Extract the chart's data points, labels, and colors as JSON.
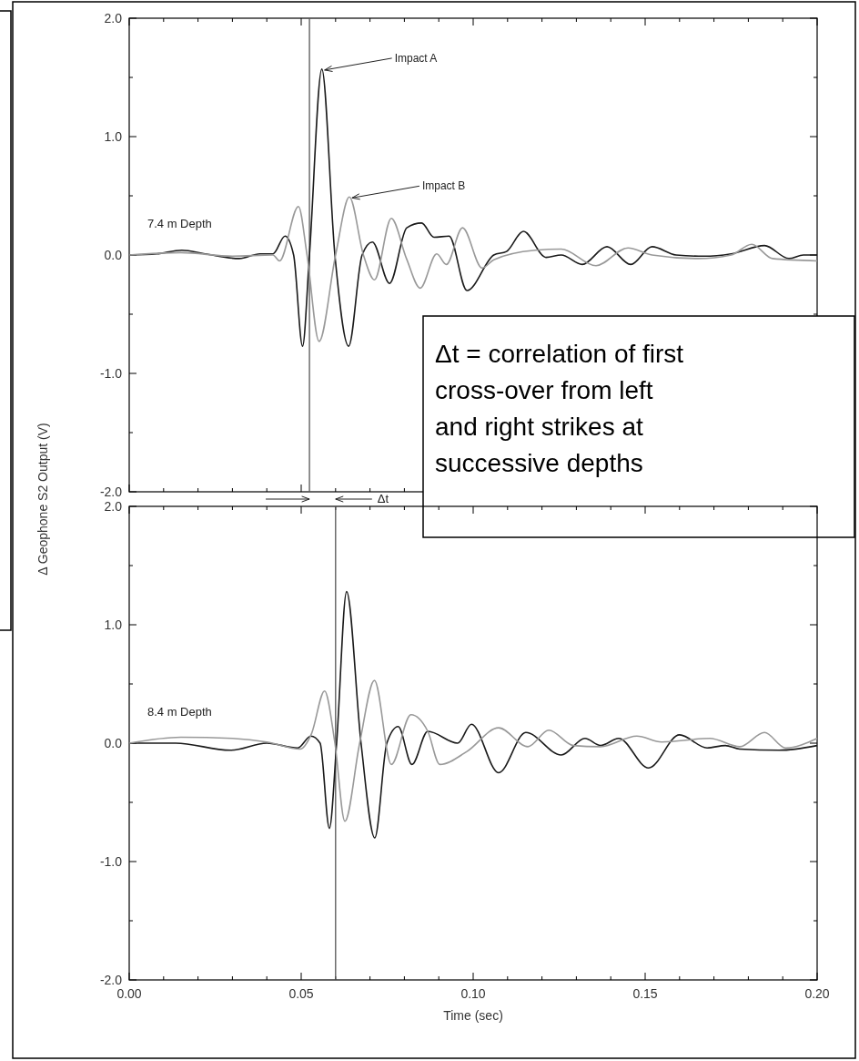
{
  "chart_data": [
    {
      "type": "line",
      "ylabel": "Δ Geophone S2 Output (V)",
      "xlim": [
        0,
        0.2
      ],
      "ylim": [
        -2,
        2
      ],
      "tick_labels": "y",
      "xticks": [
        {
          "value": 0,
          "label": null
        },
        {
          "value": 0.01,
          "label": null
        },
        {
          "value": 0.02,
          "label": null
        },
        {
          "value": 0.03,
          "label": null
        },
        {
          "value": 0.04,
          "label": null
        },
        {
          "value": 0.05,
          "label": null
        },
        {
          "value": 0.06,
          "label": null
        },
        {
          "value": 0.07,
          "label": null
        },
        {
          "value": 0.08,
          "label": null
        },
        {
          "value": 0.09,
          "label": null
        },
        {
          "value": 0.1,
          "label": null
        },
        {
          "value": 0.11,
          "label": null
        },
        {
          "value": 0.12,
          "label": null
        },
        {
          "value": 0.13,
          "label": null
        },
        {
          "value": 0.14,
          "label": null
        },
        {
          "value": 0.15,
          "label": null
        },
        {
          "value": 0.16,
          "label": null
        },
        {
          "value": 0.17,
          "label": null
        },
        {
          "value": 0.18,
          "label": null
        },
        {
          "value": 0.19,
          "label": null
        },
        {
          "value": 0.2,
          "label": null
        }
      ],
      "yticks": [
        {
          "value": -2,
          "label": "-2.0"
        },
        {
          "value": -1.5,
          "label": null
        },
        {
          "value": -1,
          "label": "-1.0"
        },
        {
          "value": -0.5,
          "label": null
        },
        {
          "value": 0,
          "label": "0.0"
        },
        {
          "value": 0.5,
          "label": null
        },
        {
          "value": 1,
          "label": "1.0"
        },
        {
          "value": 1.5,
          "label": null
        },
        {
          "value": 2,
          "label": "2.0"
        }
      ],
      "series": [
        {
          "name": "Impact A",
          "color": "#1a1a1a",
          "x": [
            0,
            0.008,
            0.0153,
            0.022,
            0.032,
            0.038,
            0.0418,
            0.0453,
            0.0478,
            0.0504,
            0.0524,
            0.056,
            0.0598,
            0.0638,
            0.0677,
            0.0707,
            0.0757,
            0.0807,
            0.085,
            0.0886,
            0.093,
            0.0982,
            0.106,
            0.1097,
            0.1146,
            0.1212,
            0.1256,
            0.1317,
            0.1389,
            0.1458,
            0.152,
            0.159,
            0.167,
            0.175,
            0.1847,
            0.1918,
            0.196,
            0.2
          ],
          "values": [
            0,
            0.01,
            0.04,
            0.01,
            -0.03,
            0.01,
            0.01,
            0.16,
            0,
            -0.77,
            0,
            1.57,
            0,
            -0.77,
            0,
            0.11,
            -0.24,
            0.23,
            0.27,
            0.15,
            0.16,
            -0.3,
            0,
            0.03,
            0.2,
            -0.02,
            0,
            -0.08,
            0.07,
            -0.08,
            0.07,
            0,
            -0.01,
            0.01,
            0.08,
            -0.03,
            0,
            0
          ]
        },
        {
          "name": "Impact B",
          "color": "#999999",
          "x": [
            0,
            0.015,
            0.03,
            0.0418,
            0.0437,
            0.0492,
            0.0517,
            0.0552,
            0.06,
            0.064,
            0.0681,
            0.0713,
            0.0762,
            0.0806,
            0.0846,
            0.0894,
            0.0922,
            0.0969,
            0.1026,
            0.106,
            0.118,
            0.1256,
            0.1357,
            0.145,
            0.152,
            0.1653,
            0.175,
            0.181,
            0.187,
            0.2
          ],
          "values": [
            0,
            0.02,
            -0.01,
            0,
            -0.05,
            0.41,
            0,
            -0.73,
            0,
            0.49,
            0,
            -0.21,
            0.31,
            -0.03,
            -0.28,
            0.01,
            -0.08,
            0.23,
            -0.11,
            -0.04,
            0.04,
            0.05,
            -0.09,
            0.06,
            0,
            -0.03,
            0,
            0.09,
            -0.03,
            -0.05
          ]
        }
      ],
      "ref_lines": [
        {
          "axis": "x",
          "value": 0.0524,
          "color": "#555555"
        }
      ],
      "annotations": [
        "7.4 m Depth",
        "Δt = correlation of first cross-over from left and right strikes at successive depths"
      ]
    },
    {
      "type": "line",
      "xlabel": "Time (sec)",
      "xlim": [
        0,
        0.2
      ],
      "ylim": [
        -2,
        2
      ],
      "xticks": [
        {
          "value": 0,
          "label": "0.00"
        },
        {
          "value": 0.01,
          "label": null
        },
        {
          "value": 0.02,
          "label": null
        },
        {
          "value": 0.03,
          "label": null
        },
        {
          "value": 0.04,
          "label": null
        },
        {
          "value": 0.05,
          "label": "0.05"
        },
        {
          "value": 0.06,
          "label": null
        },
        {
          "value": 0.07,
          "label": null
        },
        {
          "value": 0.08,
          "label": null
        },
        {
          "value": 0.09,
          "label": null
        },
        {
          "value": 0.1,
          "label": "0.10"
        },
        {
          "value": 0.11,
          "label": null
        },
        {
          "value": 0.12,
          "label": null
        },
        {
          "value": 0.13,
          "label": null
        },
        {
          "value": 0.14,
          "label": null
        },
        {
          "value": 0.15,
          "label": "0.15"
        },
        {
          "value": 0.16,
          "label": null
        },
        {
          "value": 0.17,
          "label": null
        },
        {
          "value": 0.18,
          "label": null
        },
        {
          "value": 0.19,
          "label": null
        },
        {
          "value": 0.2,
          "label": "0.20"
        }
      ],
      "yticks": [
        {
          "value": -2,
          "label": "-2.0"
        },
        {
          "value": -1.5,
          "label": null
        },
        {
          "value": -1,
          "label": "-1.0"
        },
        {
          "value": -0.5,
          "label": null
        },
        {
          "value": 0,
          "label": "0.0"
        },
        {
          "value": 0.5,
          "label": null
        },
        {
          "value": 1,
          "label": "1.0"
        },
        {
          "value": 1.5,
          "label": null
        },
        {
          "value": 2,
          "label": "2.0"
        }
      ],
      "series": [
        {
          "color": "#1a1a1a",
          "x": [
            0,
            0.0135,
            0.0294,
            0.04,
            0.049,
            0.0528,
            0.0555,
            0.0582,
            0.0603,
            0.0632,
            0.0674,
            0.0714,
            0.0749,
            0.0782,
            0.0822,
            0.0868,
            0.0955,
            0.0995,
            0.1074,
            0.1153,
            0.1256,
            0.1325,
            0.137,
            0.1423,
            0.151,
            0.16,
            0.168,
            0.1733,
            0.1775,
            0.189,
            0.2
          ],
          "values": [
            0,
            0,
            -0.06,
            0,
            -0.04,
            0.06,
            0,
            -0.72,
            0,
            1.28,
            0,
            -0.8,
            0,
            0.14,
            -0.18,
            0.1,
            0,
            0.16,
            -0.25,
            0.09,
            -0.1,
            0.04,
            -0.02,
            0.04,
            -0.21,
            0.07,
            -0.04,
            -0.02,
            -0.05,
            -0.06,
            -0.02
          ]
        },
        {
          "color": "#999999",
          "x": [
            0,
            0.015,
            0.03,
            0.04,
            0.0497,
            0.053,
            0.0568,
            0.0598,
            0.0627,
            0.067,
            0.0713,
            0.0762,
            0.0819,
            0.0868,
            0.0903,
            0.0982,
            0.1074,
            0.1159,
            0.122,
            0.1291,
            0.137,
            0.1476,
            0.1548,
            0.1688,
            0.1775,
            0.1847,
            0.1908,
            0.2
          ],
          "values": [
            0,
            0.05,
            0.04,
            0.01,
            -0.05,
            0.08,
            0.44,
            0,
            -0.66,
            0,
            0.53,
            -0.18,
            0.24,
            0.1,
            -0.18,
            -0.07,
            0.13,
            -0.03,
            0.11,
            -0.02,
            -0.03,
            0.06,
            0.01,
            0.04,
            -0.03,
            0.09,
            -0.04,
            0.04
          ]
        }
      ],
      "ref_lines": [
        {
          "axis": "x",
          "value": 0.06,
          "color": "#555555"
        }
      ],
      "annotations": [
        "8.4 m Depth",
        "Δt"
      ]
    }
  ]
}
